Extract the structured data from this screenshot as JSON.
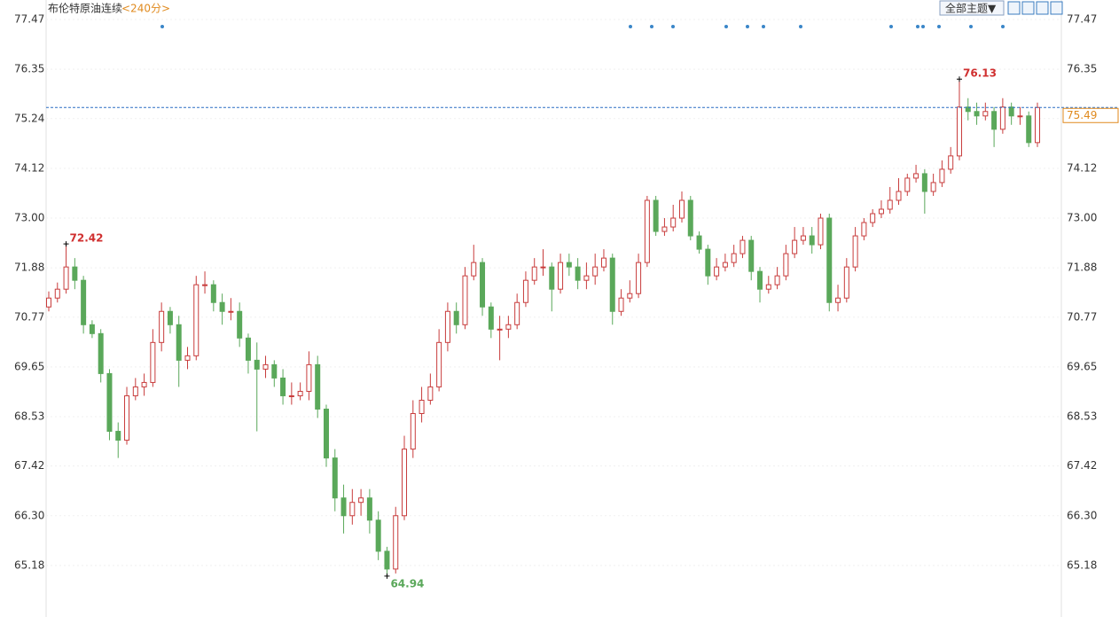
{
  "chart_data": {
    "type": "candlestick",
    "title": "布伦特原油连续",
    "period": "<240分>",
    "theme_button": "全部主题▼",
    "up_color": "#c83c3c",
    "down_color": "#5aa85a",
    "ylim": [
      64.02,
      77.91
    ],
    "yticks": [
      77.47,
      76.35,
      75.24,
      74.12,
      {
        "value": 73,
        "label": "73.00"
      },
      71.88,
      70.77,
      69.65,
      68.53,
      67.42,
      {
        "value": 66.3,
        "label": "66.30"
      },
      65.18
    ],
    "open": [
      71.0,
      71.2,
      71.4,
      71.9,
      71.6,
      70.6,
      70.4,
      69.5,
      68.2,
      68.0,
      69.0,
      69.2,
      69.3,
      70.2,
      70.9,
      70.6,
      69.8,
      69.9,
      71.5,
      71.5,
      71.1,
      70.9,
      70.9,
      70.3,
      69.8,
      69.6,
      69.7,
      69.4,
      69.0,
      69.0,
      69.1,
      69.7,
      68.7,
      67.6,
      66.7,
      66.3,
      66.6,
      66.7,
      66.2,
      65.5,
      65.1,
      66.3,
      67.8,
      68.6,
      68.9,
      69.2,
      70.2,
      70.9,
      70.6,
      71.7,
      72.0,
      71.0,
      70.5,
      70.5,
      70.6,
      71.1,
      71.6,
      71.9,
      71.9,
      71.4,
      72.0,
      71.9,
      71.6,
      71.7,
      71.9,
      72.1,
      70.9,
      71.2,
      71.3,
      72.0,
      73.4,
      72.7,
      72.8,
      73.0,
      73.4,
      72.6,
      72.3,
      71.7,
      71.9,
      72.0,
      72.2,
      72.5,
      71.8,
      71.4,
      71.5,
      71.7,
      72.2,
      72.5,
      72.6,
      72.4,
      73.0,
      71.1,
      71.2,
      71.9,
      72.6,
      72.9,
      73.1,
      73.2,
      73.4,
      73.6,
      73.9,
      74.0,
      73.6,
      73.8,
      74.1,
      74.4,
      75.5,
      75.4,
      75.3,
      75.4,
      75.0,
      75.5,
      75.3,
      75.3,
      74.7
    ],
    "high": [
      71.35,
      71.55,
      72.42,
      72.1,
      71.7,
      70.7,
      70.5,
      69.6,
      68.4,
      69.2,
      69.4,
      69.5,
      70.5,
      71.1,
      71.0,
      70.8,
      70.1,
      71.7,
      71.8,
      71.6,
      71.3,
      71.2,
      71.1,
      70.4,
      70.2,
      69.9,
      69.8,
      69.6,
      69.3,
      69.3,
      70.0,
      69.9,
      68.8,
      67.8,
      67.0,
      66.9,
      66.9,
      66.9,
      66.4,
      65.6,
      66.5,
      68.1,
      68.9,
      69.2,
      69.5,
      70.5,
      71.1,
      71.1,
      71.9,
      72.4,
      72.1,
      71.1,
      70.8,
      70.8,
      71.3,
      71.8,
      72.1,
      72.3,
      72.0,
      72.2,
      72.2,
      72.1,
      72.0,
      72.2,
      72.3,
      72.2,
      71.4,
      71.6,
      72.2,
      73.5,
      73.5,
      73.0,
      73.3,
      73.6,
      73.5,
      72.7,
      72.4,
      72.1,
      72.2,
      72.4,
      72.6,
      72.6,
      71.9,
      71.7,
      71.9,
      72.4,
      72.8,
      72.8,
      72.8,
      73.1,
      73.1,
      71.5,
      72.1,
      72.8,
      73.0,
      73.2,
      73.4,
      73.7,
      73.9,
      74.0,
      74.2,
      74.1,
      74.0,
      74.3,
      74.6,
      76.13,
      75.7,
      75.6,
      75.6,
      75.5,
      75.7,
      75.6,
      75.5,
      75.4,
      75.6
    ],
    "low": [
      70.9,
      71.1,
      71.3,
      71.4,
      70.4,
      70.3,
      69.3,
      68.0,
      67.6,
      67.9,
      68.9,
      69.0,
      69.2,
      70.0,
      70.4,
      69.2,
      69.6,
      69.8,
      71.3,
      70.9,
      70.6,
      70.7,
      70.1,
      69.5,
      68.2,
      69.4,
      69.2,
      68.8,
      68.8,
      68.9,
      68.9,
      68.5,
      67.4,
      66.4,
      65.9,
      66.1,
      66.3,
      65.9,
      65.3,
      64.94,
      65.0,
      66.2,
      67.6,
      68.4,
      68.8,
      69.1,
      70.0,
      70.4,
      70.5,
      71.6,
      70.8,
      70.3,
      69.8,
      70.3,
      70.5,
      71.0,
      71.5,
      71.7,
      70.9,
      71.3,
      71.7,
      71.4,
      71.4,
      71.5,
      71.8,
      70.6,
      70.8,
      71.1,
      71.2,
      71.9,
      72.6,
      72.6,
      72.7,
      72.9,
      72.5,
      72.2,
      71.5,
      71.6,
      71.8,
      71.9,
      72.1,
      71.6,
      71.1,
      71.3,
      71.4,
      71.6,
      72.1,
      72.4,
      72.2,
      72.3,
      70.9,
      70.9,
      71.1,
      71.8,
      72.5,
      72.8,
      73.0,
      73.1,
      73.3,
      73.5,
      73.8,
      73.1,
      73.5,
      73.7,
      74.0,
      74.3,
      75.2,
      75.1,
      75.2,
      74.6,
      74.9,
      75.1,
      75.1,
      74.6,
      74.6
    ],
    "close": [
      71.2,
      71.4,
      71.9,
      71.6,
      70.6,
      70.4,
      69.5,
      68.2,
      68.0,
      69.0,
      69.2,
      69.3,
      70.2,
      70.9,
      70.6,
      69.8,
      69.9,
      71.5,
      71.5,
      71.1,
      70.9,
      70.9,
      70.3,
      69.8,
      69.6,
      69.7,
      69.4,
      69.0,
      69.0,
      69.1,
      69.7,
      68.7,
      67.6,
      66.7,
      66.3,
      66.6,
      66.7,
      66.2,
      65.5,
      65.1,
      66.3,
      67.8,
      68.6,
      68.9,
      69.2,
      70.2,
      70.9,
      70.6,
      71.7,
      72.0,
      71.0,
      70.5,
      70.5,
      70.6,
      71.1,
      71.6,
      71.9,
      71.9,
      71.4,
      72.0,
      71.9,
      71.6,
      71.7,
      71.9,
      72.1,
      70.9,
      71.2,
      71.3,
      72.0,
      73.4,
      72.7,
      72.8,
      73.0,
      73.4,
      72.6,
      72.3,
      71.7,
      71.9,
      72.0,
      72.2,
      72.5,
      71.8,
      71.4,
      71.5,
      71.7,
      72.2,
      72.5,
      72.6,
      72.4,
      73.0,
      71.1,
      71.2,
      71.9,
      72.6,
      72.9,
      73.1,
      73.2,
      73.4,
      73.6,
      73.9,
      74.0,
      73.6,
      73.8,
      74.1,
      74.4,
      75.5,
      75.4,
      75.3,
      75.4,
      75.0,
      75.5,
      75.3,
      75.3,
      74.7,
      75.49
    ],
    "extremes": [
      {
        "kind": "high",
        "value": 72.42,
        "label": "72.42",
        "color": "#d03030"
      },
      {
        "kind": "low",
        "value": 64.94,
        "label": "64.94",
        "color": "#5aa85a"
      },
      {
        "kind": "high",
        "value": 76.13,
        "label": "76.13",
        "color": "#d03030"
      }
    ],
    "last_price": {
      "value": 75.49,
      "label": "75.49",
      "color": "#e08a1e",
      "line_color": "#2a6fc4"
    }
  }
}
